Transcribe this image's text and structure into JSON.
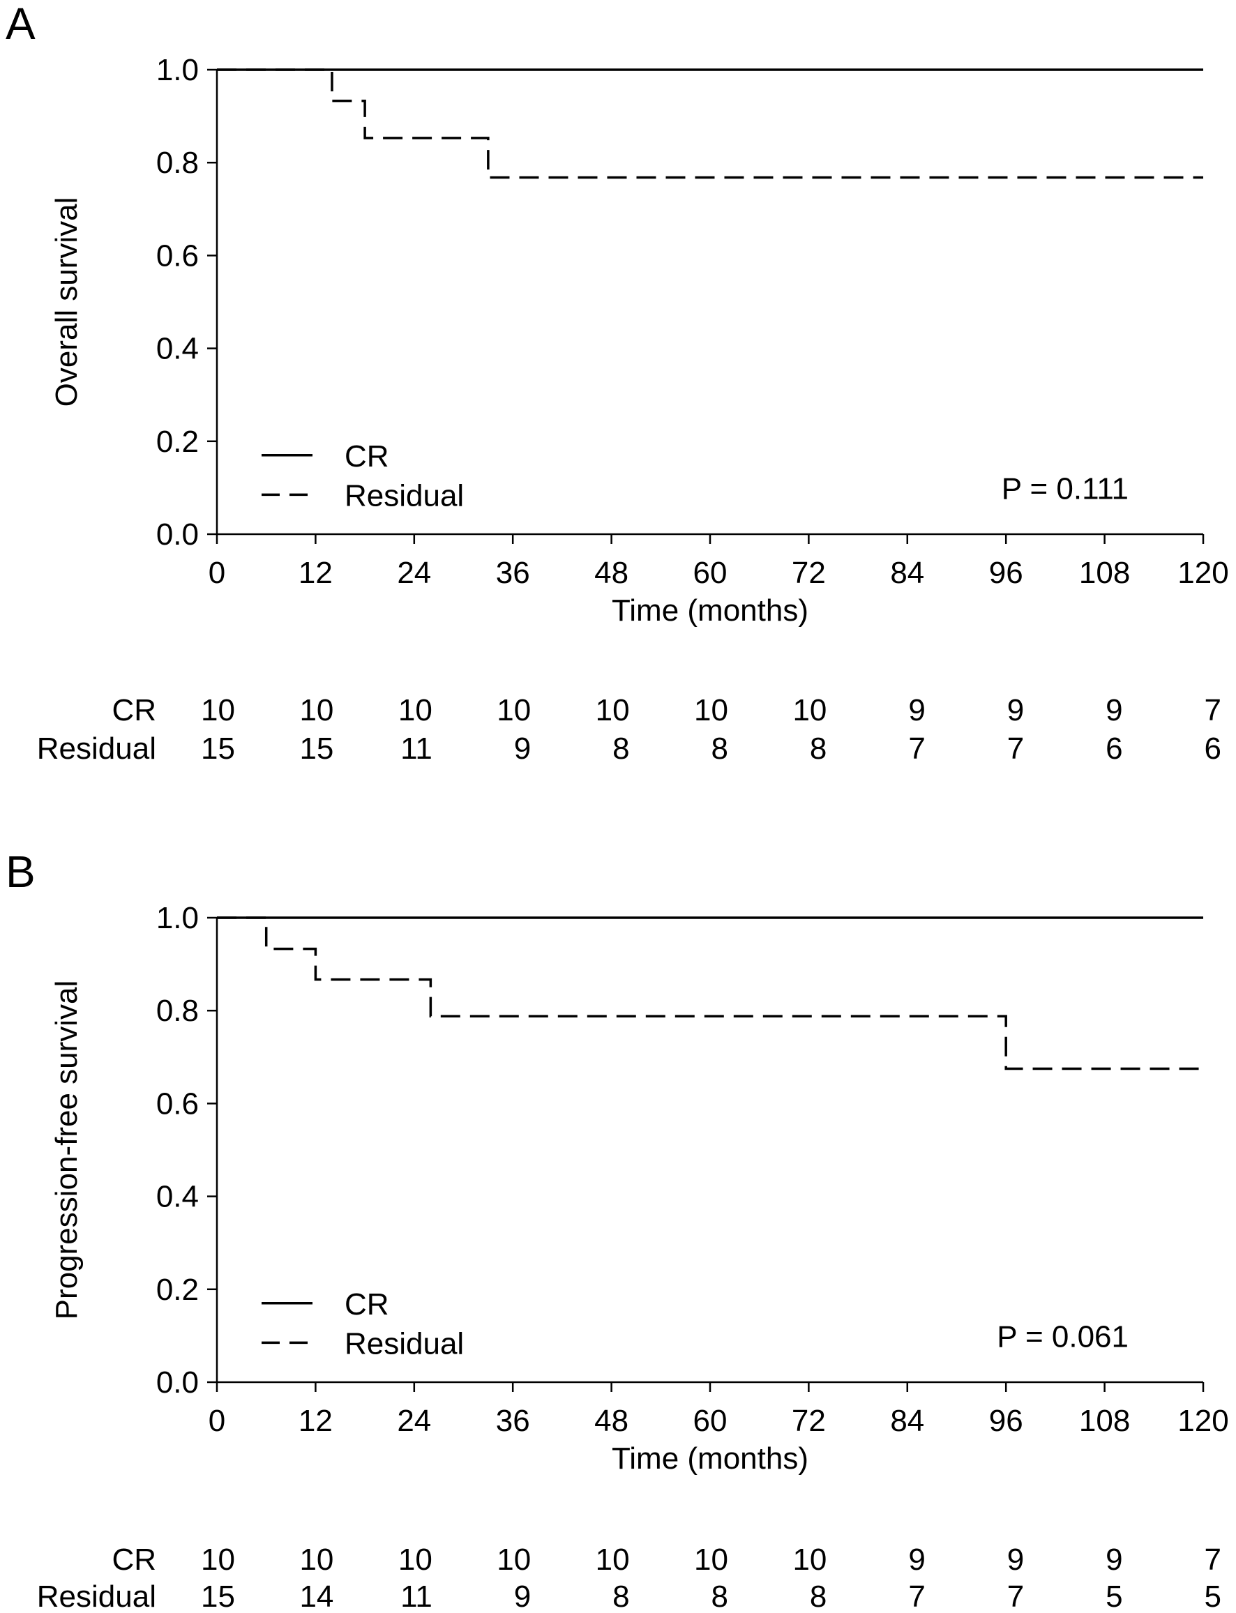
{
  "chart_data": [
    {
      "type": "line",
      "panel_label": "A",
      "ylabel": "Overall survival",
      "xlabel": "Time (months)",
      "xlim": [
        0,
        120
      ],
      "ylim": [
        0,
        1
      ],
      "xticks": [
        0,
        12,
        24,
        36,
        48,
        60,
        72,
        84,
        96,
        108,
        120
      ],
      "yticks": [
        "0.0",
        "0.2",
        "0.4",
        "0.6",
        "0.8",
        "1.0"
      ],
      "grid": false,
      "series": [
        {
          "name": "CR",
          "style": "solid",
          "steps": [
            [
              0,
              1.0
            ],
            [
              120,
              1.0
            ]
          ]
        },
        {
          "name": "Residual",
          "style": "dashed",
          "steps": [
            [
              0,
              1.0
            ],
            [
              14,
              0.933
            ],
            [
              18,
              0.853
            ],
            [
              33,
              0.768
            ],
            [
              120,
              0.768
            ]
          ]
        }
      ],
      "legend": {
        "position": "bottom-left",
        "entries": [
          "CR",
          "Residual"
        ]
      },
      "annotation": "P = 0.111",
      "risk_table": [
        {
          "label": "CR",
          "values": [
            "10",
            "10",
            "10",
            "10",
            "10",
            "10",
            "10",
            "9",
            "9",
            "9",
            "7"
          ]
        },
        {
          "label": "Residual",
          "values": [
            "15",
            "15",
            "11",
            "9",
            "8",
            "8",
            "8",
            "7",
            "7",
            "6",
            "6"
          ]
        }
      ]
    },
    {
      "type": "line",
      "panel_label": "B",
      "ylabel": "Progression-free survival",
      "xlabel": "Time (months)",
      "xlim": [
        0,
        120
      ],
      "ylim": [
        0,
        1
      ],
      "xticks": [
        0,
        12,
        24,
        36,
        48,
        60,
        72,
        84,
        96,
        108,
        120
      ],
      "yticks": [
        "0.0",
        "0.2",
        "0.4",
        "0.6",
        "0.8",
        "1.0"
      ],
      "grid": false,
      "series": [
        {
          "name": "CR",
          "style": "solid",
          "steps": [
            [
              0,
              1.0
            ],
            [
              120,
              1.0
            ]
          ]
        },
        {
          "name": "Residual",
          "style": "dashed",
          "steps": [
            [
              0,
              1.0
            ],
            [
              6,
              0.933
            ],
            [
              12,
              0.867
            ],
            [
              26,
              0.788
            ],
            [
              96,
              0.675
            ],
            [
              120,
              0.675
            ]
          ]
        }
      ],
      "legend": {
        "position": "bottom-left",
        "entries": [
          "CR",
          "Residual"
        ]
      },
      "annotation": "P = 0.061",
      "risk_table": [
        {
          "label": "CR",
          "values": [
            "10",
            "10",
            "10",
            "10",
            "10",
            "10",
            "10",
            "9",
            "9",
            "9",
            "7"
          ]
        },
        {
          "label": "Residual",
          "values": [
            "15",
            "14",
            "11",
            "9",
            "8",
            "8",
            "8",
            "7",
            "7",
            "5",
            "5"
          ]
        }
      ]
    }
  ]
}
